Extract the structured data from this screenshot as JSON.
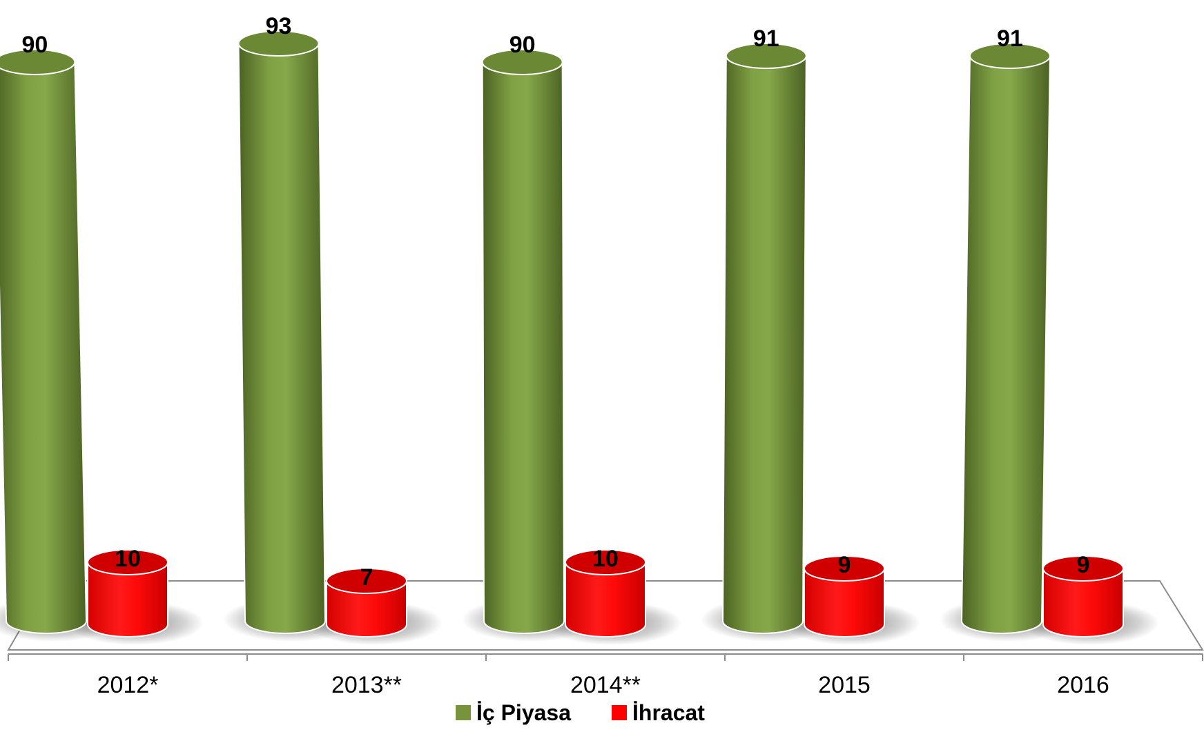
{
  "chart_data": {
    "type": "bar",
    "categories": [
      "2012*",
      "2013**",
      "2014**",
      "2015",
      "2016"
    ],
    "series": [
      {
        "name": "İç Piyasa",
        "values": [
          90,
          93,
          90,
          91,
          91
        ],
        "color": "#77933C"
      },
      {
        "name": "İhracat",
        "values": [
          10,
          7,
          10,
          9,
          9
        ],
        "color": "#FF0000"
      }
    ],
    "title": "",
    "xlabel": "",
    "ylabel": "",
    "ylim": [
      0,
      100
    ],
    "grid": false,
    "legend": "bottom-center"
  }
}
